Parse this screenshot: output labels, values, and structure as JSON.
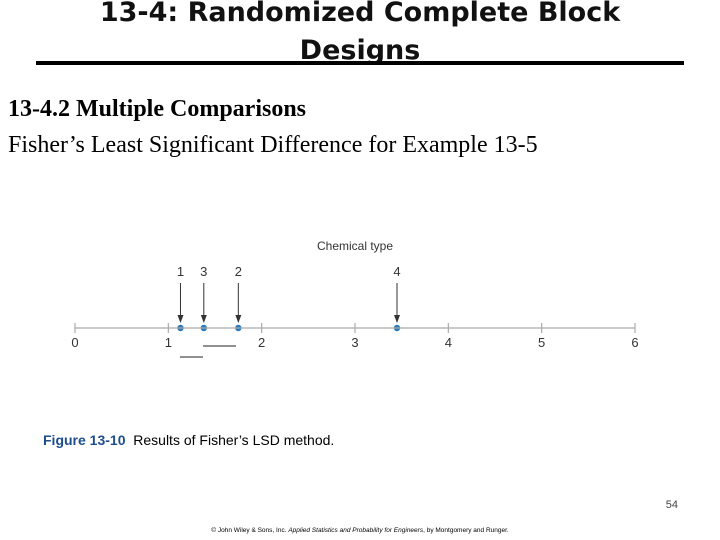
{
  "header": {
    "title_line1": "13-4: Randomized Complete Block",
    "title_line2": "Designs"
  },
  "content": {
    "subtitle": "13-4.2 Multiple Comparisons",
    "description": "Fisher’s Least Significant Difference for Example 13-5"
  },
  "figure": {
    "axis_title": "Chemical type",
    "tick_labels": [
      "0",
      "1",
      "2",
      "3",
      "4",
      "5",
      "6"
    ],
    "axis_range": [
      0,
      6
    ],
    "points": [
      {
        "label": "1",
        "value": 1.13
      },
      {
        "label": "3",
        "value": 1.38
      },
      {
        "label": "2",
        "value": 1.75
      },
      {
        "label": "4",
        "value": 3.45
      }
    ],
    "point_color": "#2a7ab9",
    "caption_number": "Figure 13-10",
    "caption_text": "Results of Fisher’s LSD method."
  },
  "footer": {
    "page_number": "54",
    "credit_prefix": "© John Wiley & Sons, Inc.  ",
    "credit_book": "Applied Statistics and Probability for Engineers",
    "credit_suffix": ", by Montgomery and Runger."
  }
}
